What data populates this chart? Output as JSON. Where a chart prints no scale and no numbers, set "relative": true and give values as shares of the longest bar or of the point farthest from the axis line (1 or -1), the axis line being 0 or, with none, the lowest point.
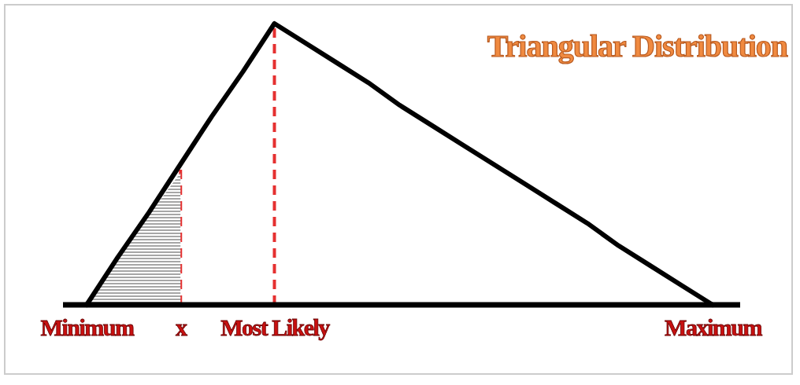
{
  "chart_data": {
    "type": "line",
    "title": "Triangular Distribution",
    "relative": true,
    "categories": [
      "Minimum",
      null,
      null,
      "x",
      null,
      null,
      "Most Likely",
      null,
      null,
      null,
      null,
      null,
      null,
      null,
      null,
      null,
      null,
      null,
      null,
      null,
      "Maximum"
    ],
    "series": [
      {
        "type": "area",
        "color": "#808080",
        "values": [
          0,
          0.16,
          0.32,
          0.47,
          null,
          null,
          null,
          null,
          null,
          null,
          null,
          null,
          null,
          null,
          null,
          null,
          null,
          null,
          null,
          null,
          null
        ]
      },
      {
        "color": "#000000",
        "values": [
          0,
          0.17,
          0.33,
          0.5,
          0.67,
          0.83,
          1,
          0.93,
          0.86,
          0.79,
          0.71,
          0.64,
          0.57,
          0.5,
          0.43,
          0.36,
          0.29,
          0.21,
          0.14,
          0.07,
          0
        ]
      }
    ],
    "ref_lines": [
      {
        "axis": "x",
        "value": "x",
        "color": "#e53030",
        "line_style": "dashed"
      },
      {
        "axis": "x",
        "value": "Most Likely",
        "color": "#e53030",
        "line_style": "dashed"
      }
    ]
  }
}
